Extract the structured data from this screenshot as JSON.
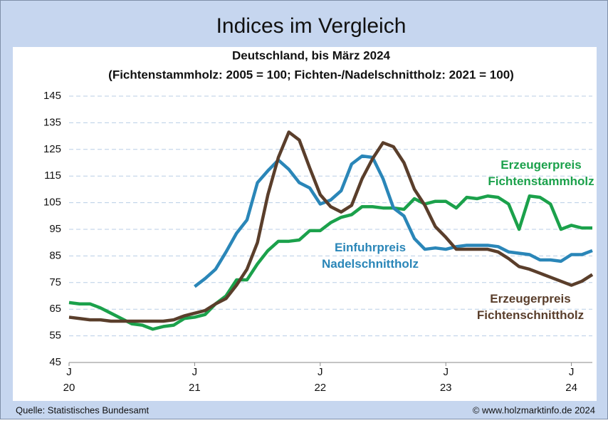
{
  "chart_data": {
    "type": "line",
    "title": "Indices im Vergleich",
    "subtitle": "Deutschland, bis März 2024",
    "subtitle2": "(Fichtenstammholz: 2005 = 100; Fichten-/Nadelschnittholz: 2021 = 100)",
    "source": "Quelle:  Statistisches Bundesamt",
    "credit": "© www.holzmarktinfo.de  2024",
    "x": [
      0,
      1,
      2,
      3,
      4,
      5,
      6,
      7,
      8,
      9,
      10,
      11,
      12,
      13,
      14,
      15,
      16,
      17,
      18,
      19,
      20,
      21,
      22,
      23,
      24,
      25,
      26,
      27,
      28,
      29,
      30,
      31,
      32,
      33,
      34,
      35,
      36,
      37,
      38,
      39,
      40,
      41,
      42,
      43,
      44,
      45,
      46,
      47,
      48,
      49,
      50
    ],
    "xlim": [
      0,
      50
    ],
    "xticks": [
      {
        "value": 0,
        "label": "J"
      },
      {
        "value": 12,
        "label": "J"
      },
      {
        "value": 24,
        "label": "J"
      },
      {
        "value": 36,
        "label": "J"
      },
      {
        "value": 48,
        "label": "J"
      }
    ],
    "xtick_years": [
      "20",
      "21",
      "22",
      "23",
      "24"
    ],
    "ylim": [
      45,
      145
    ],
    "yticks": [
      45,
      55,
      65,
      75,
      85,
      95,
      105,
      115,
      125,
      135,
      145
    ],
    "grid": true,
    "series": [
      {
        "name": "Erzeugerpreis\nFichtenstammholz",
        "color": "#1ba14b",
        "values": [
          67.5,
          67,
          67,
          65.5,
          63.5,
          61.5,
          59.5,
          59,
          57.5,
          58.5,
          59,
          61.5,
          62,
          63,
          67,
          70,
          76,
          76,
          82,
          87,
          90.5,
          90.5,
          91,
          94.5,
          94.5,
          97.5,
          99.5,
          100.5,
          103.5,
          103.5,
          103,
          103,
          102.5,
          106.5,
          104.5,
          105.5,
          105.5,
          103,
          107,
          106.5,
          107.5,
          107,
          104.5,
          95,
          107.5,
          107,
          104.5,
          95,
          96.5,
          95.5,
          95.5
        ]
      },
      {
        "name": "Einfuhrpreis\nNadelschnittholz",
        "color": "#2a86b8",
        "values": [
          null,
          null,
          null,
          null,
          null,
          null,
          null,
          null,
          null,
          null,
          null,
          null,
          73.5,
          76.5,
          80,
          86.5,
          93.5,
          98.5,
          112.5,
          117,
          121,
          117.5,
          112.5,
          110.5,
          104.5,
          106,
          109.5,
          119.5,
          122.5,
          122,
          114,
          103,
          100,
          91.5,
          87.5,
          88,
          87.5,
          88.5,
          89,
          89,
          89,
          88.5,
          86.5,
          86,
          85.5,
          83.5,
          83.5,
          83,
          85.5,
          85.5,
          87
        ]
      },
      {
        "name": "Erzeugerpreis\nFichtenschnittholz",
        "color": "#5a3e2b",
        "values": [
          62,
          61.5,
          61,
          61,
          60.5,
          60.5,
          60.5,
          60.5,
          60.5,
          60.5,
          61,
          62.5,
          63.5,
          64.5,
          67,
          69,
          74,
          80,
          90,
          108,
          122,
          131.5,
          128.5,
          118,
          108,
          103.5,
          101.5,
          104,
          114,
          121.5,
          127.5,
          126,
          120,
          110,
          104,
          96,
          92,
          87.5,
          87.5,
          87.5,
          87.5,
          86.5,
          84,
          81,
          80,
          78.5,
          77,
          75.5,
          74,
          75.5,
          78
        ]
      }
    ]
  }
}
